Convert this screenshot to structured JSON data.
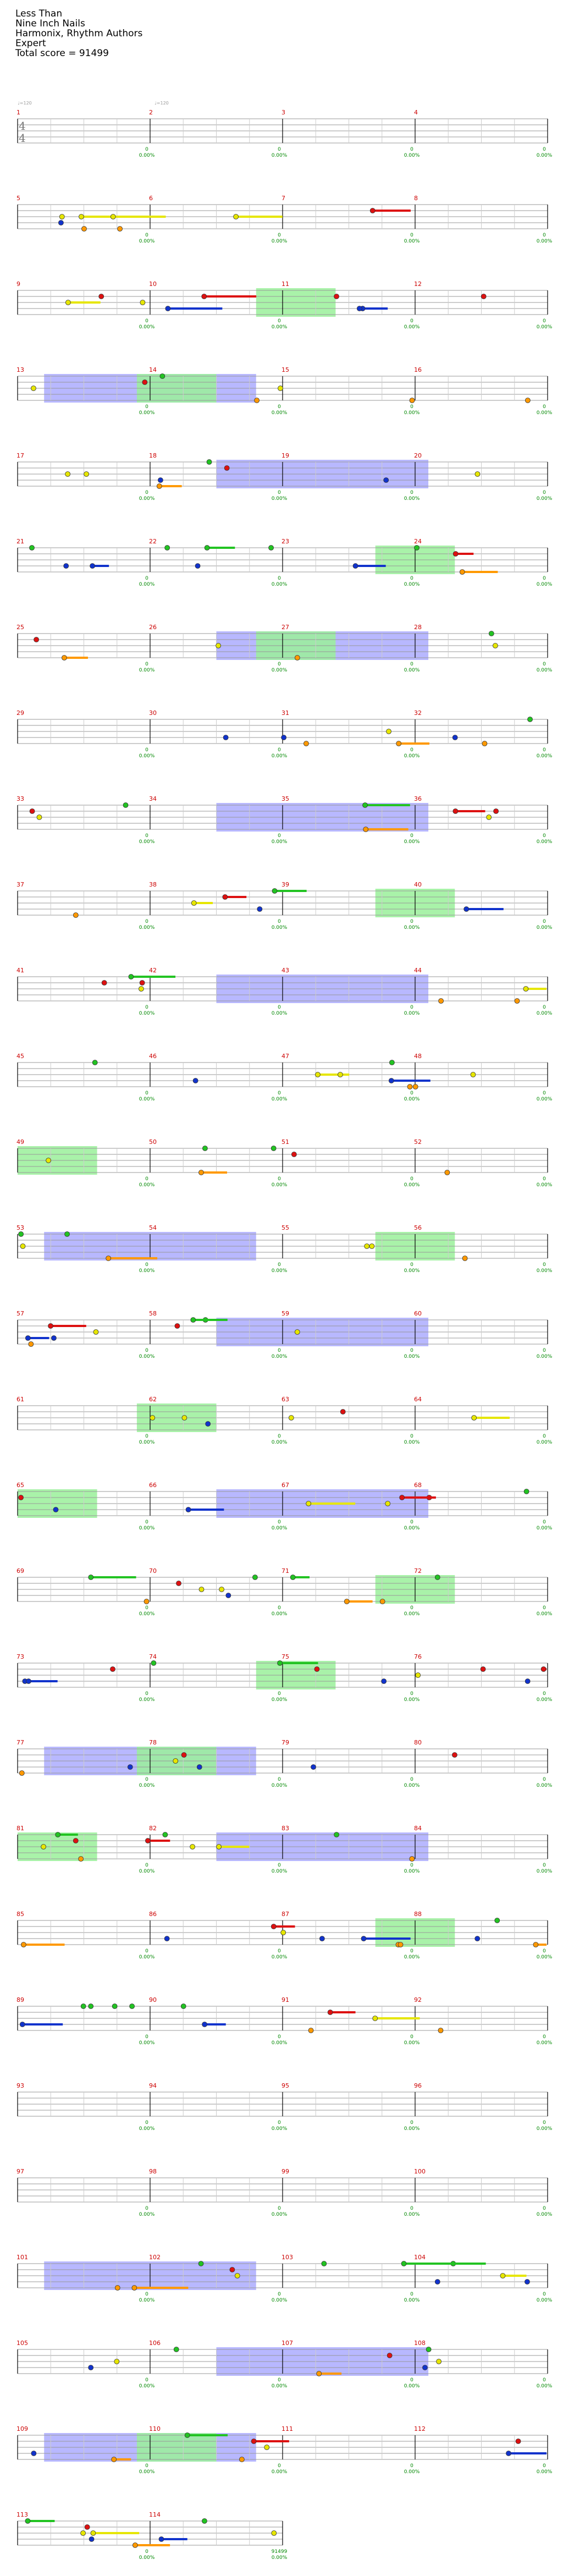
{
  "song": {
    "title": "Less Than",
    "artist": "Nine Inch Nails",
    "charter": "Harmonix, Rhythm Authors",
    "difficulty": "Expert",
    "total_score": "Total score = 91499"
  },
  "time_signature": {
    "top": "4",
    "bottom": "4"
  },
  "tempo_markers": [
    "♩=120",
    "♩=120"
  ],
  "colors": {
    "green": "#22c322",
    "red": "#dd1111",
    "yellow": "#e6e600",
    "blue": "#1133cc",
    "orange": "#ff9900",
    "purple": "#b0006e",
    "measure_number": "#cc0000",
    "score": "#008800",
    "star_power": "#a0a0ff",
    "solo": "#9af09a",
    "staff": "#000000"
  },
  "measure_numbers": [
    "1",
    "2",
    "3",
    "4",
    "5",
    "6",
    "7",
    "8",
    "9",
    "10",
    "11",
    "12",
    "13",
    "14",
    "15",
    "16",
    "17",
    "18",
    "19",
    "20",
    "21",
    "22",
    "23",
    "24",
    "25",
    "26",
    "27",
    "28",
    "29",
    "30",
    "31",
    "32",
    "33",
    "34",
    "35",
    "36",
    "37",
    "38",
    "39",
    "40",
    "41",
    "42",
    "43",
    "44",
    "45",
    "46",
    "47",
    "48",
    "49",
    "50",
    "51",
    "52",
    "53",
    "54",
    "55",
    "56",
    "57",
    "58",
    "59",
    "60",
    "61",
    "62",
    "63",
    "64",
    "65",
    "66",
    "67",
    "68",
    "69",
    "70",
    "71",
    "72",
    "73",
    "74",
    "75",
    "76",
    "77",
    "78",
    "79",
    "80",
    "81",
    "82",
    "83",
    "84",
    "85",
    "86",
    "87",
    "88",
    "89",
    "90",
    "91",
    "92",
    "93",
    "94",
    "95",
    "96",
    "97",
    "98",
    "99",
    "100",
    "101",
    "102",
    "103",
    "104",
    "105",
    "106",
    "107",
    "108",
    "109",
    "110",
    "111",
    "112",
    "113",
    "114"
  ],
  "measure_scores": [
    "0",
    "0",
    "0",
    "0",
    "0",
    "0",
    "0",
    "0",
    "0",
    "0",
    "0",
    "0",
    "0",
    "0",
    "0",
    "0",
    "0",
    "0",
    "0",
    "0",
    "0",
    "0",
    "0",
    "0",
    "0",
    "0",
    "0",
    "0",
    "0",
    "0",
    "0",
    "0",
    "0",
    "0",
    "0",
    "0",
    "0",
    "0",
    "0",
    "0",
    "0",
    "0",
    "0",
    "0",
    "0",
    "0",
    "0",
    "0",
    "0",
    "0",
    "0",
    "0",
    "0",
    "0",
    "0",
    "0",
    "0",
    "0",
    "0",
    "0",
    "0",
    "0",
    "0",
    "0",
    "0",
    "0",
    "0",
    "0",
    "0",
    "0",
    "0",
    "0",
    "0",
    "0",
    "0",
    "0",
    "0",
    "0",
    "0",
    "0",
    "0",
    "0",
    "0",
    "0",
    "0",
    "0",
    "0",
    "0",
    "0",
    "0",
    "0",
    "0",
    "0",
    "0",
    "0",
    "0",
    "0",
    "0",
    "0",
    "0",
    "0",
    "0",
    "0",
    "0",
    "0",
    "0",
    "0",
    "0",
    "0",
    "0",
    "0",
    "0",
    "0",
    "91499"
  ],
  "measure_pcts": [
    "0.00%",
    "0.00%",
    "0.00%",
    "0.00%",
    "0.00%",
    "0.00%",
    "0.00%",
    "0.00%",
    "0.00%",
    "0.00%",
    "0.00%",
    "0.00%",
    "0.00%",
    "0.00%",
    "0.00%",
    "0.00%",
    "0.00%",
    "0.00%",
    "0.00%",
    "0.00%",
    "0.00%",
    "0.00%",
    "0.00%",
    "0.00%",
    "0.00%",
    "0.00%",
    "0.00%",
    "0.00%",
    "0.00%",
    "0.00%",
    "0.00%",
    "0.00%",
    "0.00%",
    "0.00%",
    "0.00%",
    "0.00%",
    "0.00%",
    "0.00%",
    "0.00%",
    "0.00%",
    "0.00%",
    "0.00%",
    "0.00%",
    "0.00%",
    "0.00%",
    "0.00%",
    "0.00%",
    "0.00%",
    "0.00%",
    "0.00%",
    "0.00%",
    "0.00%",
    "0.00%",
    "0.00%",
    "0.00%",
    "0.00%",
    "0.00%",
    "0.00%",
    "0.00%",
    "0.00%",
    "0.00%",
    "0.00%",
    "0.00%",
    "0.00%",
    "0.00%",
    "0.00%",
    "0.00%",
    "0.00%",
    "0.00%",
    "0.00%",
    "0.00%",
    "0.00%",
    "0.00%",
    "0.00%",
    "0.00%",
    "0.00%",
    "0.00%",
    "0.00%",
    "0.00%",
    "0.00%",
    "0.00%",
    "0.00%",
    "0.00%",
    "0.00%",
    "0.00%",
    "0.00%",
    "0.00%",
    "0.00%",
    "0.00%",
    "0.00%",
    "0.00%",
    "0.00%",
    "0.00%",
    "0.00%",
    "0.00%",
    "0.00%",
    "0.00%",
    "0.00%",
    "0.00%",
    "0.00%",
    "0.00%",
    "0.00%",
    "0.00%",
    "0.00%",
    "0.00%",
    "0.00%",
    "0.00%",
    "0.00%",
    "0.00%",
    "0.00%",
    "0.00%",
    "0.00%",
    "0.00%",
    "0.00%"
  ]
}
